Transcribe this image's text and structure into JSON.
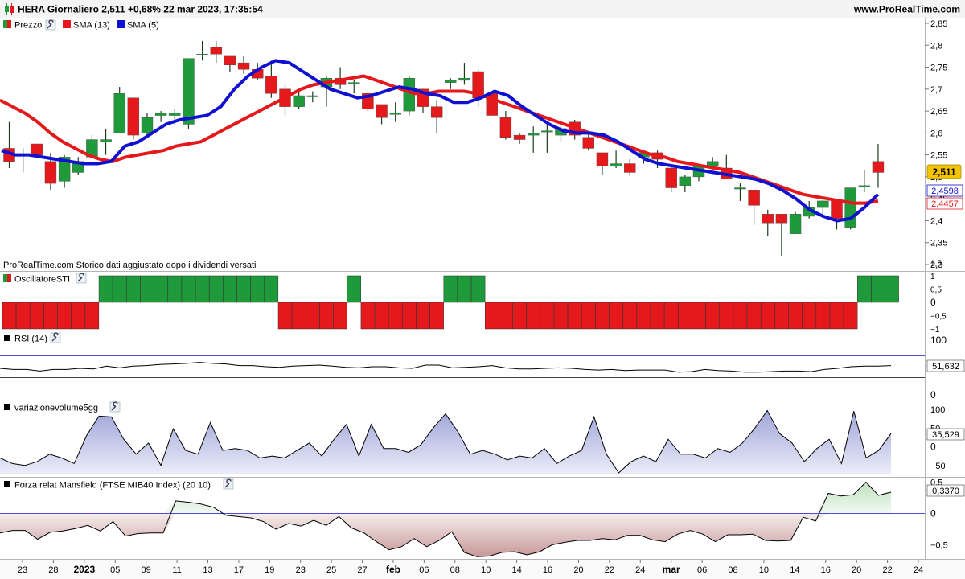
{
  "header": {
    "instrument": "HERA",
    "text": "HERA Giornaliero 2,511 +0,68% 22 mar 2023, 17:35:54",
    "site": "www.ProRealTime.com"
  },
  "chart_data": {
    "type": "candlestick",
    "x_ticks": [
      "23",
      "28",
      "2023",
      "05",
      "09",
      "11",
      "13",
      "17",
      "19",
      "23",
      "25",
      "27",
      "feb",
      "06",
      "08",
      "10",
      "14",
      "16",
      "20",
      "22",
      "24",
      "mar",
      "06",
      "08",
      "10",
      "14",
      "16",
      "20",
      "22",
      "24"
    ],
    "bold_ticks": [
      "2023",
      "feb",
      "mar"
    ],
    "legend": [
      {
        "label": "Prezzo",
        "color": "#1e9a3a",
        "color2": "#e5191b"
      },
      {
        "label": "SMA (13)",
        "color": "#e5191b"
      },
      {
        "label": "SMA (5)",
        "color": "#1010d0"
      }
    ],
    "note": "ProRealTime.com  Storico dati aggiustato dopo i dividendi versati",
    "price_axis": {
      "range": [
        2.3,
        2.85
      ],
      "ticks": [
        "2,85",
        "2,8",
        "2,75",
        "2,7",
        "2,65",
        "2,6",
        "2,55",
        "2,5",
        "2,45",
        "2,4",
        "2,35",
        "2,3"
      ]
    },
    "candles": [
      {
        "o": 2.565,
        "h": 2.625,
        "l": 2.52,
        "c": 2.535
      },
      {
        "o": 2.55,
        "h": 2.565,
        "l": 2.51,
        "c": 2.55
      },
      {
        "o": 2.575,
        "h": 2.575,
        "l": 2.545,
        "c": 2.55
      },
      {
        "o": 2.535,
        "h": 2.555,
        "l": 2.47,
        "c": 2.485
      },
      {
        "o": 2.49,
        "h": 2.55,
        "l": 2.475,
        "c": 2.545
      },
      {
        "o": 2.51,
        "h": 2.545,
        "l": 2.505,
        "c": 2.535
      },
      {
        "o": 2.545,
        "h": 2.595,
        "l": 2.54,
        "c": 2.585
      },
      {
        "o": 2.58,
        "h": 2.61,
        "l": 2.55,
        "c": 2.585
      },
      {
        "o": 2.6,
        "h": 2.705,
        "l": 2.6,
        "c": 2.69
      },
      {
        "o": 2.68,
        "h": 2.68,
        "l": 2.585,
        "c": 2.595
      },
      {
        "o": 2.6,
        "h": 2.645,
        "l": 2.59,
        "c": 2.635
      },
      {
        "o": 2.64,
        "h": 2.65,
        "l": 2.625,
        "c": 2.645
      },
      {
        "o": 2.64,
        "h": 2.655,
        "l": 2.62,
        "c": 2.645
      },
      {
        "o": 2.62,
        "h": 2.77,
        "l": 2.61,
        "c": 2.77
      },
      {
        "o": 2.78,
        "h": 2.81,
        "l": 2.765,
        "c": 2.78
      },
      {
        "o": 2.795,
        "h": 2.81,
        "l": 2.76,
        "c": 2.78
      },
      {
        "o": 2.775,
        "h": 2.775,
        "l": 2.74,
        "c": 2.755
      },
      {
        "o": 2.76,
        "h": 2.775,
        "l": 2.735,
        "c": 2.745
      },
      {
        "o": 2.745,
        "h": 2.76,
        "l": 2.72,
        "c": 2.725
      },
      {
        "o": 2.73,
        "h": 2.765,
        "l": 2.68,
        "c": 2.69
      },
      {
        "o": 2.7,
        "h": 2.71,
        "l": 2.64,
        "c": 2.66
      },
      {
        "o": 2.66,
        "h": 2.695,
        "l": 2.655,
        "c": 2.685
      },
      {
        "o": 2.685,
        "h": 2.695,
        "l": 2.67,
        "c": 2.685
      },
      {
        "o": 2.705,
        "h": 2.73,
        "l": 2.66,
        "c": 2.725
      },
      {
        "o": 2.725,
        "h": 2.75,
        "l": 2.7,
        "c": 2.71
      },
      {
        "o": 2.715,
        "h": 2.72,
        "l": 2.69,
        "c": 2.715
      },
      {
        "o": 2.69,
        "h": 2.69,
        "l": 2.65,
        "c": 2.655
      },
      {
        "o": 2.665,
        "h": 2.665,
        "l": 2.62,
        "c": 2.635
      },
      {
        "o": 2.645,
        "h": 2.67,
        "l": 2.625,
        "c": 2.645
      },
      {
        "o": 2.65,
        "h": 2.73,
        "l": 2.64,
        "c": 2.725
      },
      {
        "o": 2.7,
        "h": 2.7,
        "l": 2.645,
        "c": 2.66
      },
      {
        "o": 2.66,
        "h": 2.675,
        "l": 2.6,
        "c": 2.635
      },
      {
        "o": 2.715,
        "h": 2.725,
        "l": 2.7,
        "c": 2.72
      },
      {
        "o": 2.72,
        "h": 2.76,
        "l": 2.71,
        "c": 2.725
      },
      {
        "o": 2.74,
        "h": 2.745,
        "l": 2.66,
        "c": 2.68
      },
      {
        "o": 2.69,
        "h": 2.695,
        "l": 2.64,
        "c": 2.64
      },
      {
        "o": 2.635,
        "h": 2.65,
        "l": 2.585,
        "c": 2.59
      },
      {
        "o": 2.595,
        "h": 2.6,
        "l": 2.575,
        "c": 2.585
      },
      {
        "o": 2.595,
        "h": 2.615,
        "l": 2.555,
        "c": 2.6
      },
      {
        "o": 2.605,
        "h": 2.625,
        "l": 2.555,
        "c": 2.605
      },
      {
        "o": 2.595,
        "h": 2.615,
        "l": 2.58,
        "c": 2.61
      },
      {
        "o": 2.625,
        "h": 2.63,
        "l": 2.585,
        "c": 2.595
      },
      {
        "o": 2.59,
        "h": 2.6,
        "l": 2.56,
        "c": 2.565
      },
      {
        "o": 2.555,
        "h": 2.555,
        "l": 2.505,
        "c": 2.525
      },
      {
        "o": 2.525,
        "h": 2.56,
        "l": 2.52,
        "c": 2.53
      },
      {
        "o": 2.53,
        "h": 2.54,
        "l": 2.505,
        "c": 2.51
      },
      {
        "o": 2.545,
        "h": 2.555,
        "l": 2.53,
        "c": 2.555
      },
      {
        "o": 2.555,
        "h": 2.56,
        "l": 2.52,
        "c": 2.54
      },
      {
        "o": 2.52,
        "h": 2.525,
        "l": 2.465,
        "c": 2.475
      },
      {
        "o": 2.48,
        "h": 2.505,
        "l": 2.465,
        "c": 2.5
      },
      {
        "o": 2.5,
        "h": 2.53,
        "l": 2.49,
        "c": 2.525
      },
      {
        "o": 2.525,
        "h": 2.545,
        "l": 2.515,
        "c": 2.535
      },
      {
        "o": 2.52,
        "h": 2.55,
        "l": 2.495,
        "c": 2.495
      },
      {
        "o": 2.475,
        "h": 2.485,
        "l": 2.445,
        "c": 2.475
      },
      {
        "o": 2.47,
        "h": 2.47,
        "l": 2.39,
        "c": 2.435
      },
      {
        "o": 2.415,
        "h": 2.425,
        "l": 2.365,
        "c": 2.395
      },
      {
        "o": 2.415,
        "h": 2.415,
        "l": 2.32,
        "c": 2.395
      },
      {
        "o": 2.37,
        "h": 2.42,
        "l": 2.37,
        "c": 2.415
      },
      {
        "o": 2.41,
        "h": 2.445,
        "l": 2.405,
        "c": 2.43
      },
      {
        "o": 2.43,
        "h": 2.45,
        "l": 2.41,
        "c": 2.445
      },
      {
        "o": 2.445,
        "h": 2.445,
        "l": 2.38,
        "c": 2.405
      },
      {
        "o": 2.385,
        "h": 2.475,
        "l": 2.38,
        "c": 2.475
      },
      {
        "o": 2.48,
        "h": 2.515,
        "l": 2.465,
        "c": 2.48
      },
      {
        "o": 2.535,
        "h": 2.575,
        "l": 2.475,
        "c": 2.51
      }
    ],
    "sma13": [
      2.675,
      2.66,
      2.645,
      2.625,
      2.6,
      2.58,
      2.565,
      2.55,
      2.54,
      2.535,
      2.545,
      2.55,
      2.555,
      2.56,
      2.57,
      2.575,
      2.58,
      2.595,
      2.61,
      2.625,
      2.64,
      2.655,
      2.67,
      2.685,
      2.7,
      2.71,
      2.715,
      2.72,
      2.725,
      2.73,
      2.72,
      2.71,
      2.7,
      2.69,
      2.69,
      2.695,
      2.695,
      2.695,
      2.69,
      2.68,
      2.67,
      2.66,
      2.65,
      2.64,
      2.63,
      2.62,
      2.61,
      2.6,
      2.59,
      2.58,
      2.57,
      2.56,
      2.55,
      2.545,
      2.535,
      2.53,
      2.525,
      2.52,
      2.515,
      2.51,
      2.5,
      2.49,
      2.48,
      2.47,
      2.46,
      2.455,
      2.45,
      2.445,
      2.44,
      2.44,
      2.445
    ],
    "sma5": [
      2.56,
      2.55,
      2.55,
      2.545,
      2.54,
      2.535,
      2.53,
      2.53,
      2.535,
      2.57,
      2.58,
      2.6,
      2.62,
      2.63,
      2.635,
      2.64,
      2.66,
      2.7,
      2.73,
      2.75,
      2.765,
      2.76,
      2.74,
      2.72,
      2.7,
      2.69,
      2.68,
      2.685,
      2.695,
      2.705,
      2.7,
      2.69,
      2.685,
      2.67,
      2.67,
      2.68,
      2.695,
      2.685,
      2.66,
      2.64,
      2.62,
      2.605,
      2.6,
      2.6,
      2.595,
      2.58,
      2.56,
      2.54,
      2.53,
      2.525,
      2.52,
      2.515,
      2.51,
      2.505,
      2.5,
      2.495,
      2.485,
      2.47,
      2.45,
      2.425,
      2.41,
      2.4,
      2.405,
      2.43,
      2.46
    ]
  },
  "price_labels": {
    "last": "2,511",
    "sma5": "2,4598",
    "sma13": "2,4457"
  },
  "panels": {
    "oscillatore": {
      "title": "OscillatoreSTI",
      "axis": [
        "1,5",
        "1",
        "0,5",
        "0",
        "−0,5",
        "−1"
      ],
      "signals": [
        -1,
        -1,
        -1,
        -1,
        -1,
        -1,
        -1,
        1,
        1,
        1,
        1,
        1,
        1,
        1,
        1,
        1,
        1,
        1,
        1,
        1,
        -1,
        -1,
        -1,
        -1,
        -1,
        1,
        -1,
        -1,
        -1,
        -1,
        -1,
        -1,
        1,
        1,
        1,
        -1,
        -1,
        -1,
        -1,
        -1,
        -1,
        -1,
        -1,
        -1,
        -1,
        -1,
        -1,
        -1,
        -1,
        -1,
        -1,
        -1,
        -1,
        -1,
        -1,
        -1,
        -1,
        -1,
        -1,
        -1,
        -1,
        -1,
        1,
        1,
        1
      ]
    },
    "rsi": {
      "title": "RSI (14)",
      "axis": [
        "100",
        "0"
      ],
      "last": "51,632",
      "upper": 70,
      "lower": 30,
      "values": [
        47,
        45,
        45,
        42,
        45,
        45,
        47,
        46,
        51,
        48,
        51,
        52,
        54,
        55,
        56,
        58,
        56,
        55,
        52,
        52,
        50,
        49,
        51,
        52,
        53,
        51,
        49,
        48,
        50,
        50,
        48,
        47,
        53,
        53,
        48,
        49,
        50,
        52,
        48,
        46,
        46,
        47,
        48,
        47,
        45,
        44,
        45,
        43,
        44,
        44,
        44,
        40,
        41,
        45,
        43,
        42,
        40,
        40,
        41,
        42,
        42,
        41,
        45,
        47,
        50,
        51,
        51,
        52
      ]
    },
    "volume": {
      "title": "variazionevolume5gg",
      "axis": [
        "100",
        "50",
        "0",
        "−50"
      ],
      "last": "35,529",
      "values": [
        -30,
        -45,
        -50,
        -40,
        -20,
        -30,
        -45,
        30,
        82,
        80,
        20,
        -20,
        10,
        -50,
        48,
        -10,
        -20,
        65,
        -10,
        -5,
        -10,
        -30,
        -25,
        -30,
        -10,
        10,
        -25,
        20,
        60,
        -25,
        60,
        -5,
        -5,
        -15,
        5,
        50,
        88,
        40,
        -20,
        -10,
        -20,
        -35,
        -25,
        -30,
        -5,
        -45,
        -25,
        -10,
        80,
        -20,
        -70,
        -40,
        -25,
        -40,
        20,
        -20,
        -20,
        -30,
        -5,
        -15,
        10,
        50,
        97,
        35,
        10,
        -40,
        -5,
        20,
        -45,
        95,
        -30,
        -10,
        35
      ]
    },
    "mansfield": {
      "title": "Forza relat Mansfield (FTSE MIB40 Index) (20 10)",
      "axis": [
        "0,5",
        "0",
        "−0,5"
      ],
      "last": "0,3370",
      "values": [
        -0.31,
        -0.27,
        -0.27,
        -0.41,
        -0.3,
        -0.28,
        -0.24,
        -0.19,
        -0.28,
        -0.13,
        -0.36,
        -0.32,
        -0.31,
        -0.31,
        0.2,
        0.18,
        0.15,
        0.1,
        -0.03,
        -0.05,
        -0.07,
        -0.13,
        -0.25,
        -0.16,
        -0.2,
        -0.11,
        -0.19,
        -0.05,
        -0.23,
        -0.31,
        -0.45,
        -0.58,
        -0.53,
        -0.4,
        -0.53,
        -0.43,
        -0.29,
        -0.62,
        -0.69,
        -0.68,
        -0.62,
        -0.61,
        -0.66,
        -0.61,
        -0.5,
        -0.46,
        -0.43,
        -0.43,
        -0.4,
        -0.42,
        -0.35,
        -0.35,
        -0.42,
        -0.45,
        -0.33,
        -0.27,
        -0.33,
        -0.45,
        -0.34,
        -0.34,
        -0.33,
        -0.43,
        -0.44,
        -0.43,
        -0.06,
        -0.12,
        0.32,
        0.28,
        0.3,
        0.5,
        0.29,
        0.34
      ]
    }
  }
}
